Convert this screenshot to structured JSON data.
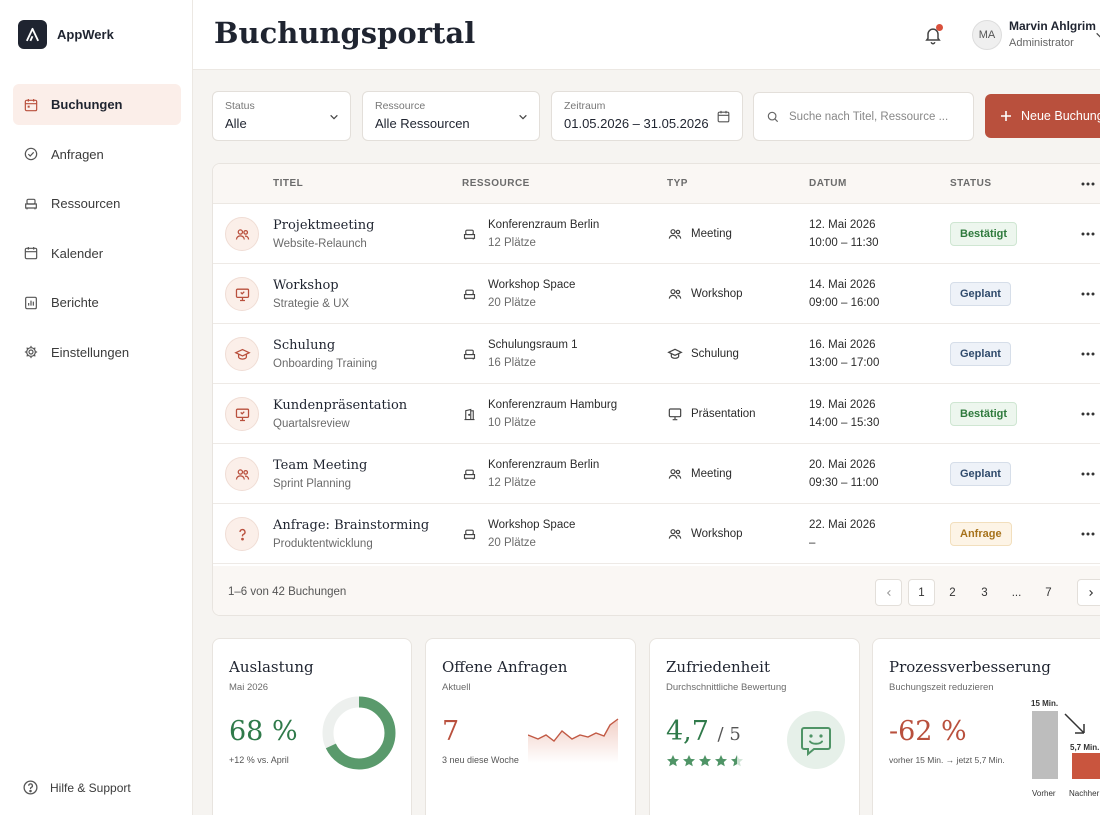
{
  "app": {
    "name": "AppWerk"
  },
  "header": {
    "title": "Buchungsportal",
    "user": {
      "initials": "MA",
      "name": "Marvin Ahlgrim",
      "role": "Administrator"
    }
  },
  "sidebar": {
    "items": [
      {
        "label": "Buchungen",
        "icon": "calendar-icon",
        "active": true
      },
      {
        "label": "Anfragen",
        "icon": "check-circle-icon"
      },
      {
        "label": "Ressourcen",
        "icon": "sofa-icon"
      },
      {
        "label": "Kalender",
        "icon": "calendar-icon"
      },
      {
        "label": "Berichte",
        "icon": "report-icon"
      },
      {
        "label": "Einstellungen",
        "icon": "gear-icon"
      }
    ],
    "help": "Hilfe & Support"
  },
  "filters": {
    "status": {
      "label": "Status",
      "value": "Alle"
    },
    "resource": {
      "label": "Ressource",
      "value": "Alle Ressourcen"
    },
    "period": {
      "label": "Zeitraum",
      "value": "01.05.2026 – 31.05.2026"
    },
    "search_placeholder": "Suche nach Titel, Ressource ...",
    "new_button": "Neue Buchung"
  },
  "table": {
    "columns": [
      "TITEL",
      "RESSOURCE",
      "TYP",
      "DATUM",
      "STATUS"
    ],
    "rows": [
      {
        "title": "Projektmeeting",
        "subtitle": "Website-Relaunch",
        "resource": "Konferenzraum Berlin",
        "capacity": "12 Plätze",
        "type": "Meeting",
        "date": "12. Mai 2026",
        "time": "10:00 – 11:30",
        "status": "Bestätigt"
      },
      {
        "title": "Workshop",
        "subtitle": "Strategie & UX",
        "resource": "Workshop Space",
        "capacity": "20 Plätze",
        "type": "Workshop",
        "date": "14. Mai 2026",
        "time": "09:00 – 16:00",
        "status": "Geplant"
      },
      {
        "title": "Schulung",
        "subtitle": "Onboarding Training",
        "resource": "Schulungsraum 1",
        "capacity": "16 Plätze",
        "type": "Schulung",
        "date": "16. Mai 2026",
        "time": "13:00 – 17:00",
        "status": "Geplant"
      },
      {
        "title": "Kundenpräsentation",
        "subtitle": "Quartalsreview",
        "resource": "Konferenzraum Hamburg",
        "capacity": "10 Plätze",
        "type": "Präsentation",
        "date": "19. Mai 2026",
        "time": "14:00 – 15:30",
        "status": "Bestätigt"
      },
      {
        "title": "Team Meeting",
        "subtitle": "Sprint Planning",
        "resource": "Konferenzraum Berlin",
        "capacity": "12 Plätze",
        "type": "Meeting",
        "date": "20. Mai 2026",
        "time": "09:30 – 11:00",
        "status": "Geplant"
      },
      {
        "title": "Anfrage: Brainstorming",
        "subtitle": "Produktentwicklung",
        "resource": "Workshop Space",
        "capacity": "20 Plätze",
        "type": "Workshop",
        "date": "22. Mai 2026",
        "time": "–",
        "status": "Anfrage"
      }
    ],
    "footer": {
      "count": "1–6 von 42 Buchungen",
      "pages": [
        "1",
        "2",
        "3",
        "...",
        "7"
      ],
      "current_page": "1"
    }
  },
  "stats": {
    "utilization": {
      "title": "Auslastung",
      "subtitle": "Mai 2026",
      "value": "68 %",
      "note": "+12 % vs. April",
      "fraction": 0.68
    },
    "open_requests": {
      "title": "Offene Anfragen",
      "subtitle": "Aktuell",
      "value": "7",
      "note": "3 neu diese Woche"
    },
    "satisfaction": {
      "title": "Zufriedenheit",
      "subtitle": "Durchschnittliche Bewertung",
      "value": "4,7",
      "scale": "/ 5",
      "stars": 4.5
    },
    "process": {
      "title": "Prozessverbesserung",
      "subtitle": "Buchungszeit reduzieren",
      "value": "-62 %",
      "note": "vorher 15 Min. → jetzt 5,7 Min.",
      "bars": [
        {
          "label": "Vorher",
          "value_label": "15 Min.",
          "minutes": 15
        },
        {
          "label": "Nachher",
          "value_label": "5,7 Min.",
          "minutes": 5.7
        }
      ]
    }
  },
  "colors": {
    "accent": "#b9503d",
    "green": "#5a9a6c",
    "sparkline": "#c25a45"
  }
}
